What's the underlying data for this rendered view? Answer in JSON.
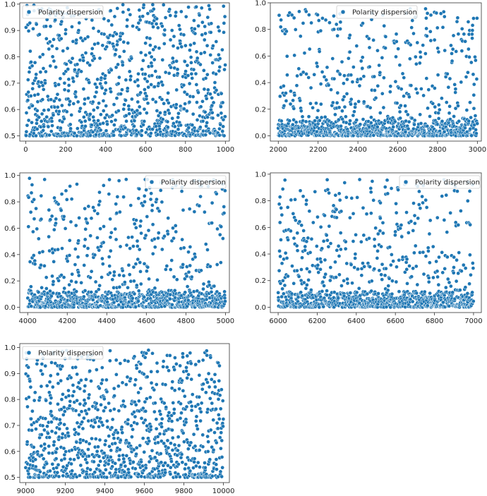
{
  "chart_data": [
    {
      "type": "scatter",
      "series": [
        {
          "name": "Polarity dispersion",
          "color": "#1f77b4",
          "count": 1000,
          "x_range": [
            0,
            999
          ],
          "distribution": "uniform x, y concentrated near lower bound"
        }
      ],
      "xlim": [
        -30,
        1020
      ],
      "ylim": [
        0.48,
        1.005
      ],
      "xticks": [
        "0",
        "200",
        "400",
        "600",
        "800",
        "1000"
      ],
      "yticks": [
        "0.5",
        "0.6",
        "0.7",
        "0.8",
        "0.9",
        "1.0"
      ],
      "legend_position": "top-left",
      "y_floor": 0.5,
      "y_ceiling": 1.0
    },
    {
      "type": "scatter",
      "series": [
        {
          "name": "Polarity dispersion",
          "color": "#1f77b4",
          "count": 1000,
          "x_range": [
            2000,
            2999
          ],
          "distribution": "uniform x, y concentrated near zero"
        }
      ],
      "xlim": [
        1960,
        3020
      ],
      "ylim": [
        -0.04,
        1.0
      ],
      "xticks": [
        "2000",
        "2200",
        "2400",
        "2600",
        "2800",
        "3000"
      ],
      "yticks": [
        "0.0",
        "0.2",
        "0.4",
        "0.6",
        "0.8",
        "1.0"
      ],
      "legend_position": "top-center",
      "y_floor": 0.0,
      "y_ceiling": 0.96
    },
    {
      "type": "scatter",
      "series": [
        {
          "name": "Polarity dispersion",
          "color": "#1f77b4",
          "count": 1000,
          "x_range": [
            4000,
            4999
          ],
          "distribution": "uniform x, y concentrated near zero"
        }
      ],
      "xlim": [
        3960,
        5020
      ],
      "ylim": [
        -0.04,
        1.02
      ],
      "xticks": [
        "4000",
        "4200",
        "4400",
        "4600",
        "4800",
        "5000"
      ],
      "yticks": [
        "0.0",
        "0.2",
        "0.4",
        "0.6",
        "0.8",
        "1.0"
      ],
      "legend_position": "top-right",
      "y_floor": 0.0,
      "y_ceiling": 0.98
    },
    {
      "type": "scatter",
      "series": [
        {
          "name": "Polarity dispersion",
          "color": "#1f77b4",
          "count": 1000,
          "x_range": [
            6000,
            6999
          ],
          "distribution": "uniform x, y concentrated near zero"
        }
      ],
      "xlim": [
        5960,
        7040
      ],
      "ylim": [
        -0.04,
        1.01
      ],
      "xticks": [
        "6000",
        "6200",
        "6400",
        "6600",
        "6800",
        "7000"
      ],
      "yticks": [
        "0.0",
        "0.2",
        "0.4",
        "0.6",
        "0.8",
        "1.0"
      ],
      "legend_position": "top-right",
      "y_floor": 0.0,
      "y_ceiling": 0.96
    },
    {
      "type": "scatter",
      "series": [
        {
          "name": "Polarity dispersion",
          "color": "#1f77b4",
          "count": 1000,
          "x_range": [
            9000,
            9999
          ],
          "distribution": "uniform x, y concentrated near lower bound"
        }
      ],
      "xlim": [
        8970,
        10030
      ],
      "ylim": [
        0.48,
        1.015
      ],
      "xticks": [
        "9000",
        "9200",
        "9400",
        "9600",
        "9800",
        "10000"
      ],
      "yticks": [
        "0.5",
        "0.6",
        "0.7",
        "0.8",
        "0.9",
        "1.0"
      ],
      "legend_position": "top-left",
      "y_floor": 0.5,
      "y_ceiling": 0.99
    }
  ]
}
